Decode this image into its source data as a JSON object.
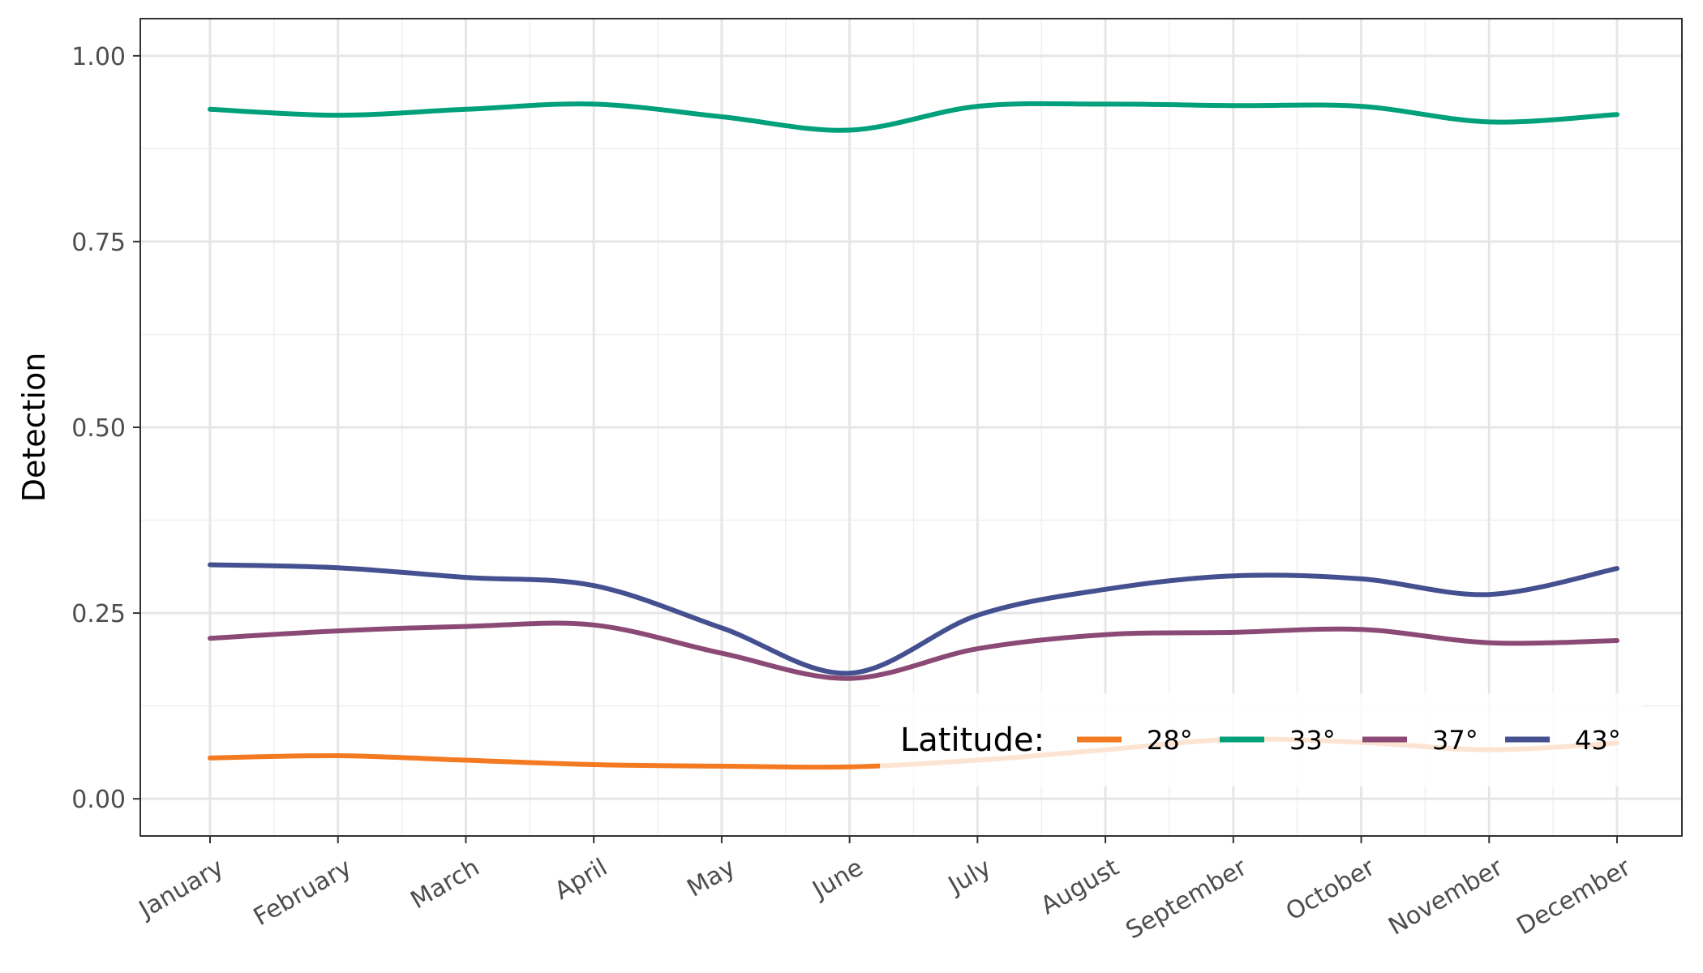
{
  "chart_data": {
    "type": "line",
    "title": "",
    "xlabel": "",
    "ylabel": "Detection",
    "ylim": [
      -0.05,
      1.05
    ],
    "yticks": [
      "0.00",
      "0.25",
      "0.50",
      "0.75",
      "1.00"
    ],
    "categories": [
      "January",
      "February",
      "March",
      "April",
      "May",
      "June",
      "July",
      "August",
      "September",
      "October",
      "November",
      "December"
    ],
    "grid": true,
    "legend": {
      "title": "Latitude:",
      "position": "bottom-right",
      "orientation": "horizontal"
    },
    "series": [
      {
        "name": "28°",
        "color": "#F47A22",
        "values": [
          0.055,
          0.058,
          0.052,
          0.046,
          0.044,
          0.043,
          0.052,
          0.066,
          0.08,
          0.076,
          0.066,
          0.075
        ]
      },
      {
        "name": "33°",
        "color": "#00A07A",
        "values": [
          0.928,
          0.92,
          0.928,
          0.935,
          0.918,
          0.9,
          0.932,
          0.935,
          0.933,
          0.932,
          0.911,
          0.921
        ]
      },
      {
        "name": "37°",
        "color": "#8B4A76",
        "values": [
          0.216,
          0.226,
          0.232,
          0.234,
          0.196,
          0.162,
          0.202,
          0.221,
          0.224,
          0.228,
          0.21,
          0.213
        ]
      },
      {
        "name": "43°",
        "color": "#44508F",
        "values": [
          0.315,
          0.311,
          0.298,
          0.287,
          0.23,
          0.169,
          0.247,
          0.282,
          0.3,
          0.296,
          0.275,
          0.31
        ]
      }
    ]
  }
}
